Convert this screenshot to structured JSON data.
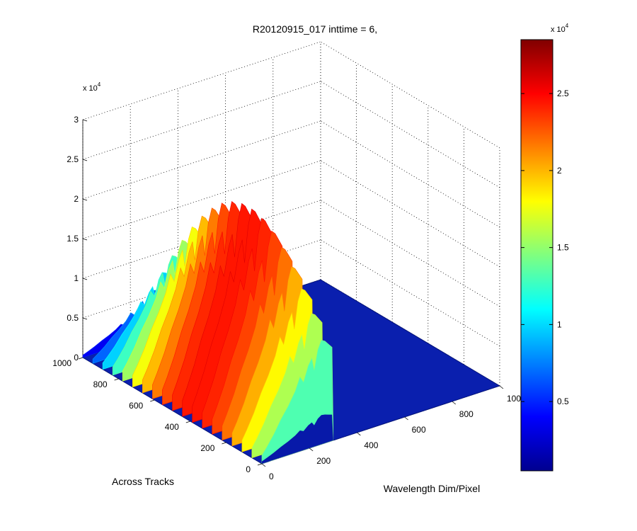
{
  "chart_data": {
    "type": "surface3d",
    "title": "R20120915_017 inttime = 6,",
    "xlabel": "Wavelength Dim/Pixel",
    "ylabel": "Across Tracks",
    "zlabel": "",
    "x_ticks": [
      "0",
      "200",
      "400",
      "600",
      "800",
      "1000"
    ],
    "y_ticks": [
      "0",
      "200",
      "400",
      "600",
      "800",
      "1000"
    ],
    "z_ticks": [
      "0",
      "0.5",
      "1",
      "1.5",
      "2",
      "2.5",
      "3"
    ],
    "z_exponent": "x 10",
    "z_exponent_power": "4",
    "xlim": [
      0,
      1000
    ],
    "ylim": [
      0,
      1000
    ],
    "zlim": [
      0,
      30000
    ],
    "grid": true,
    "colormap": "jet",
    "colorbar": {
      "ticks": [
        "0.5",
        "1",
        "1.5",
        "2",
        "2.5"
      ],
      "exponent": "x 10",
      "exponent_power": "4",
      "range": [
        500,
        28500
      ]
    },
    "surface": {
      "pixel_range": [
        0,
        300
      ],
      "track_range": [
        0,
        1000
      ],
      "peak_profile": [
        [
          0,
          2000
        ],
        [
          20,
          3500
        ],
        [
          50,
          6000
        ],
        [
          80,
          9000
        ],
        [
          110,
          11500
        ],
        [
          140,
          14500
        ],
        [
          160,
          17500
        ],
        [
          175,
          16000
        ],
        [
          195,
          19500
        ],
        [
          210,
          21000
        ],
        [
          220,
          18000
        ],
        [
          235,
          22500
        ],
        [
          250,
          24500
        ],
        [
          265,
          24000
        ],
        [
          280,
          23000
        ],
        [
          295,
          22000
        ],
        [
          300,
          2000
        ]
      ]
    }
  }
}
